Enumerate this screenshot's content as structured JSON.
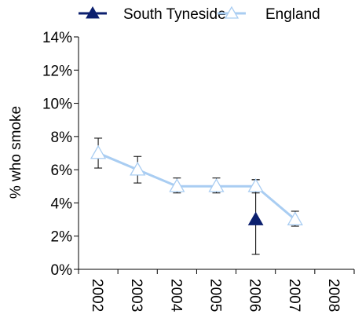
{
  "chart_data": {
    "type": "line",
    "ylabel": "% who smoke",
    "ylim": [
      0,
      14
    ],
    "y_ticks": [
      0,
      2,
      4,
      6,
      8,
      10,
      12,
      14
    ],
    "y_tick_suffix": "%",
    "x": [
      "2002",
      "2003",
      "2004",
      "2005",
      "2006",
      "2007",
      "2008"
    ],
    "legend_position": "top",
    "grid": false,
    "series": [
      {
        "name": "South Tyneside",
        "color": "#0b1f6e",
        "marker": "filled-triangle",
        "line": false,
        "values": [
          null,
          null,
          null,
          null,
          3,
          null,
          null
        ],
        "error_low": [
          null,
          null,
          null,
          null,
          0.9,
          null,
          null
        ],
        "error_high": [
          null,
          null,
          null,
          null,
          5.4,
          null,
          null
        ]
      },
      {
        "name": "England",
        "color": "#a9cdf2",
        "marker": "hollow-triangle",
        "line": true,
        "values": [
          7,
          6,
          5,
          5,
          5,
          3,
          null
        ],
        "error_low": [
          6.1,
          5.2,
          4.6,
          4.6,
          4.6,
          2.6,
          null
        ],
        "error_high": [
          7.9,
          6.8,
          5.5,
          5.5,
          5.4,
          3.5,
          null
        ]
      }
    ]
  }
}
